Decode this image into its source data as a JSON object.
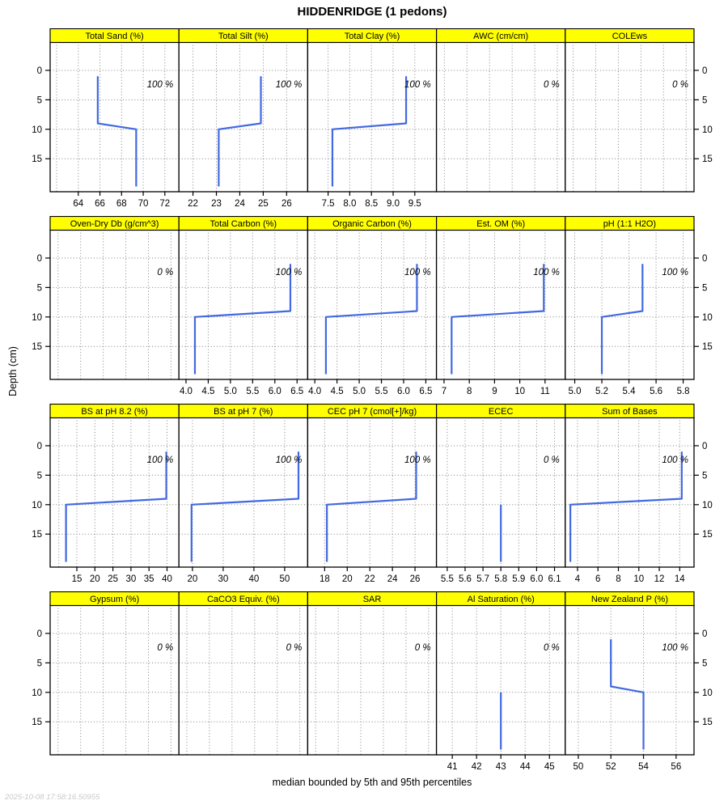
{
  "title": "HIDDENRIDGE (1 pedons)",
  "caption": "median bounded by 5th and 95th percentiles",
  "timestamp": "2025-10-08 17:58:16.50955",
  "ylabel": "Depth (cm)",
  "colors": {
    "strip_bg": "#ffff00",
    "strip_border": "#000000",
    "panel_border": "#000000",
    "line": "#4169e1",
    "grid": "#828282",
    "tick_text": "#000000",
    "timestamp_text": "#c9c9c9"
  },
  "chart_data": {
    "type": "line",
    "title": "HIDDENRIDGE (1 pedons)",
    "caption": "median bounded by 5th and 95th percentiles",
    "y_axis": {
      "label": "Depth (cm)",
      "ticks": [
        0,
        5,
        10,
        15
      ],
      "ylim": [
        -4.8,
        20.6
      ]
    },
    "grid": true,
    "legend": "none",
    "panels": [
      {
        "title": "Total Sand (%)",
        "annotation": "100 %",
        "xlim": [
          61.4,
          73.3
        ],
        "x_ticks": [
          62,
          64,
          66,
          68,
          70,
          72
        ],
        "x_labels": [
          null,
          "64",
          "66",
          "68",
          "70",
          "72"
        ],
        "profile": [
          {
            "value": 65.8,
            "top": 1,
            "bottom": 9
          },
          {
            "value": 69.35,
            "top": 10,
            "bottom": 19.7
          }
        ]
      },
      {
        "title": "Total Silt (%)",
        "annotation": "100 %",
        "xlim": [
          21.4,
          26.9
        ],
        "x_ticks": [
          22,
          23,
          24,
          25,
          26
        ],
        "x_labels": [
          "22",
          "23",
          "24",
          "25",
          "26"
        ],
        "profile": [
          {
            "value": 24.9,
            "top": 1,
            "bottom": 9
          },
          {
            "value": 23.1,
            "top": 10,
            "bottom": 19.7
          }
        ]
      },
      {
        "title": "Total Clay (%)",
        "annotation": "100 %",
        "xlim": [
          7.03,
          10.0
        ],
        "x_ticks": [
          7.5,
          8.0,
          8.5,
          9.0,
          9.5
        ],
        "x_labels": [
          "7.5",
          "8.0",
          "8.5",
          "9.0",
          "9.5"
        ],
        "profile": [
          {
            "value": 9.3,
            "top": 1,
            "bottom": 9
          },
          {
            "value": 7.6,
            "top": 10,
            "bottom": 19.7
          }
        ]
      },
      {
        "title": "AWC (cm/cm)",
        "annotation": "0 %",
        "xlim": [
          -0.07,
          1.07
        ],
        "x_ticks": [
          0,
          0.2,
          0.4,
          0.6,
          0.8,
          1
        ],
        "x_labels": null,
        "profile": []
      },
      {
        "title": "COLEws",
        "annotation": "0 %",
        "xlim": [
          -0.07,
          1.07
        ],
        "x_ticks": [
          0,
          0.2,
          0.4,
          0.6,
          0.8,
          1
        ],
        "x_labels": null,
        "profile": []
      },
      {
        "title": "Oven-Dry Db (g/cm^3)",
        "annotation": "0 %",
        "xlim": [
          -0.07,
          1.07
        ],
        "x_ticks": [
          0,
          0.2,
          0.4,
          0.6,
          0.8,
          1
        ],
        "x_labels": null,
        "profile": []
      },
      {
        "title": "Total Carbon (%)",
        "annotation": "100 %",
        "xlim": [
          3.84,
          6.74
        ],
        "x_ticks": [
          4.0,
          4.5,
          5.0,
          5.5,
          6.0,
          6.5
        ],
        "x_labels": [
          "4.0",
          "4.5",
          "5.0",
          "5.5",
          "6.0",
          "6.5"
        ],
        "profile": [
          {
            "value": 6.35,
            "top": 1,
            "bottom": 9
          },
          {
            "value": 4.2,
            "top": 10,
            "bottom": 19.7
          }
        ]
      },
      {
        "title": "Organic Carbon (%)",
        "annotation": "100 %",
        "xlim": [
          3.84,
          6.74
        ],
        "x_ticks": [
          4.0,
          4.5,
          5.0,
          5.5,
          6.0,
          6.5
        ],
        "x_labels": [
          "4.0",
          "4.5",
          "5.0",
          "5.5",
          "6.0",
          "6.5"
        ],
        "profile": [
          {
            "value": 6.3,
            "top": 1,
            "bottom": 9
          },
          {
            "value": 4.25,
            "top": 10,
            "bottom": 19.7
          }
        ]
      },
      {
        "title": "Est. OM (%)",
        "annotation": "100 %",
        "xlim": [
          6.7,
          11.8
        ],
        "x_ticks": [
          7,
          8,
          9,
          10,
          11
        ],
        "x_labels": [
          "7",
          "8",
          "9",
          "10",
          "11"
        ],
        "profile": [
          {
            "value": 10.95,
            "top": 1,
            "bottom": 9
          },
          {
            "value": 7.3,
            "top": 10,
            "bottom": 19.7
          }
        ]
      },
      {
        "title": "pH (1:1 H2O)",
        "annotation": "100 %",
        "xlim": [
          4.93,
          5.88
        ],
        "x_ticks": [
          5.0,
          5.2,
          5.4,
          5.6,
          5.8
        ],
        "x_labels": [
          "5.0",
          "5.2",
          "5.4",
          "5.6",
          "5.8"
        ],
        "profile": [
          {
            "value": 5.5,
            "top": 1,
            "bottom": 9
          },
          {
            "value": 5.2,
            "top": 10,
            "bottom": 19.7
          }
        ]
      },
      {
        "title": "BS at pH 8.2 (%)",
        "annotation": "100 %",
        "xlim": [
          7.6,
          43.3
        ],
        "x_ticks": [
          10,
          15,
          20,
          25,
          30,
          35,
          40
        ],
        "x_labels": [
          null,
          "15",
          "20",
          "25",
          "30",
          "35",
          "40"
        ],
        "profile": [
          {
            "value": 39.8,
            "top": 1,
            "bottom": 9
          },
          {
            "value": 12.0,
            "top": 10,
            "bottom": 19.7
          }
        ]
      },
      {
        "title": "BS at pH 7 (%)",
        "annotation": "100 %",
        "xlim": [
          15.6,
          57.5
        ],
        "x_ticks": [
          20,
          30,
          40,
          50
        ],
        "x_labels": [
          "20",
          "30",
          "40",
          "50"
        ],
        "profile": [
          {
            "value": 54.5,
            "top": 1,
            "bottom": 9
          },
          {
            "value": 19.7,
            "top": 10,
            "bottom": 19.7
          }
        ]
      },
      {
        "title": "CEC pH 7 (cmol[+]/kg)",
        "annotation": "100 %",
        "xlim": [
          16.5,
          27.9
        ],
        "x_ticks": [
          18,
          20,
          22,
          24,
          26
        ],
        "x_labels": [
          "18",
          "20",
          "22",
          "24",
          "26"
        ],
        "profile": [
          {
            "value": 26.1,
            "top": 1,
            "bottom": 9
          },
          {
            "value": 18.2,
            "top": 10,
            "bottom": 19.7
          }
        ]
      },
      {
        "title": "ECEC",
        "annotation": "0 %",
        "xlim": [
          5.44,
          6.16
        ],
        "x_ticks": [
          5.5,
          5.6,
          5.7,
          5.8,
          5.9,
          6.0,
          6.1
        ],
        "x_labels": [
          "5.5",
          "5.6",
          "5.7",
          "5.8",
          "5.9",
          "6.0",
          "6.1"
        ],
        "profile": [
          {
            "value": 5.8,
            "top": 10,
            "bottom": 19.7
          }
        ]
      },
      {
        "title": "Sum of Bases",
        "annotation": "100 %",
        "xlim": [
          2.8,
          15.4
        ],
        "x_ticks": [
          4,
          6,
          8,
          10,
          12,
          14
        ],
        "x_labels": [
          "4",
          "6",
          "8",
          "10",
          "12",
          "14"
        ],
        "profile": [
          {
            "value": 14.2,
            "top": 1,
            "bottom": 9
          },
          {
            "value": 3.3,
            "top": 10,
            "bottom": 19.7
          }
        ]
      },
      {
        "title": "Gypsum (%)",
        "annotation": "0 %",
        "xlim": [
          -0.07,
          1.07
        ],
        "x_ticks": [
          0,
          0.2,
          0.4,
          0.6,
          0.8,
          1
        ],
        "x_labels": null,
        "profile": []
      },
      {
        "title": "CaCO3 Equiv. (%)",
        "annotation": "0 %",
        "xlim": [
          -0.07,
          1.07
        ],
        "x_ticks": [
          0,
          0.2,
          0.4,
          0.6,
          0.8,
          1
        ],
        "x_labels": null,
        "profile": []
      },
      {
        "title": "SAR",
        "annotation": "0 %",
        "xlim": [
          -0.07,
          1.07
        ],
        "x_ticks": [
          0,
          0.2,
          0.4,
          0.6,
          0.8,
          1
        ],
        "x_labels": null,
        "profile": []
      },
      {
        "title": "Al Saturation (%)",
        "annotation": "0 %",
        "xlim": [
          40.35,
          45.65
        ],
        "x_ticks": [
          41,
          42,
          43,
          44,
          45
        ],
        "x_labels": [
          "41",
          "42",
          "43",
          "44",
          "45"
        ],
        "profile": [
          {
            "value": 43.0,
            "top": 10,
            "bottom": 19.7
          }
        ]
      },
      {
        "title": "New Zealand P (%)",
        "annotation": "100 %",
        "xlim": [
          49.2,
          57.1
        ],
        "x_ticks": [
          50,
          52,
          54,
          56
        ],
        "x_labels": [
          "50",
          "52",
          "54",
          "56"
        ],
        "profile": [
          {
            "value": 52.0,
            "top": 1,
            "bottom": 9
          },
          {
            "value": 54.0,
            "top": 10,
            "bottom": 19.7
          }
        ]
      }
    ]
  }
}
